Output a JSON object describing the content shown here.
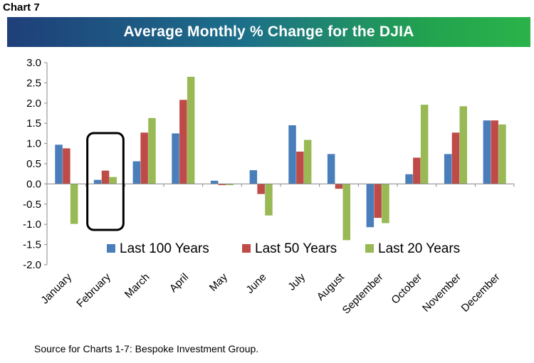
{
  "chart_label": "Chart 7",
  "source": "Source for Charts 1-7: Bespoke Investment Group.",
  "chart_data": {
    "type": "bar",
    "title": "Average Monthly % Change for the DJIA",
    "xlabel": "",
    "ylabel": "",
    "ylim": [
      -2.0,
      3.0
    ],
    "y_ticks": [
      "3.0",
      "2.5",
      "2.0",
      "1.5",
      "1.0",
      "0.5",
      "0.0",
      "-0.5",
      "-1.0",
      "-1.5",
      "-2.0"
    ],
    "grid": false,
    "legend_position": "bottom-center",
    "categories": [
      "January",
      "February",
      "March",
      "April",
      "May",
      "June",
      "July",
      "August",
      "September",
      "October",
      "November",
      "December"
    ],
    "series": [
      {
        "name": "Last 100 Years",
        "color": "#4a7ebb",
        "values": [
          0.97,
          0.1,
          0.56,
          1.25,
          0.08,
          0.34,
          1.45,
          0.74,
          -1.07,
          0.24,
          0.74,
          1.57
        ]
      },
      {
        "name": "Last 50 Years",
        "color": "#be4b48",
        "values": [
          0.88,
          0.33,
          1.27,
          2.08,
          -0.03,
          -0.25,
          0.8,
          -0.12,
          -0.84,
          0.65,
          1.27,
          1.57
        ]
      },
      {
        "name": "Last 20 Years",
        "color": "#98b954",
        "values": [
          -0.99,
          0.17,
          1.63,
          2.65,
          -0.03,
          -0.78,
          1.09,
          -1.39,
          -0.97,
          1.96,
          1.92,
          1.47
        ]
      }
    ],
    "annotations": [
      {
        "type": "box",
        "category": "February"
      }
    ]
  }
}
